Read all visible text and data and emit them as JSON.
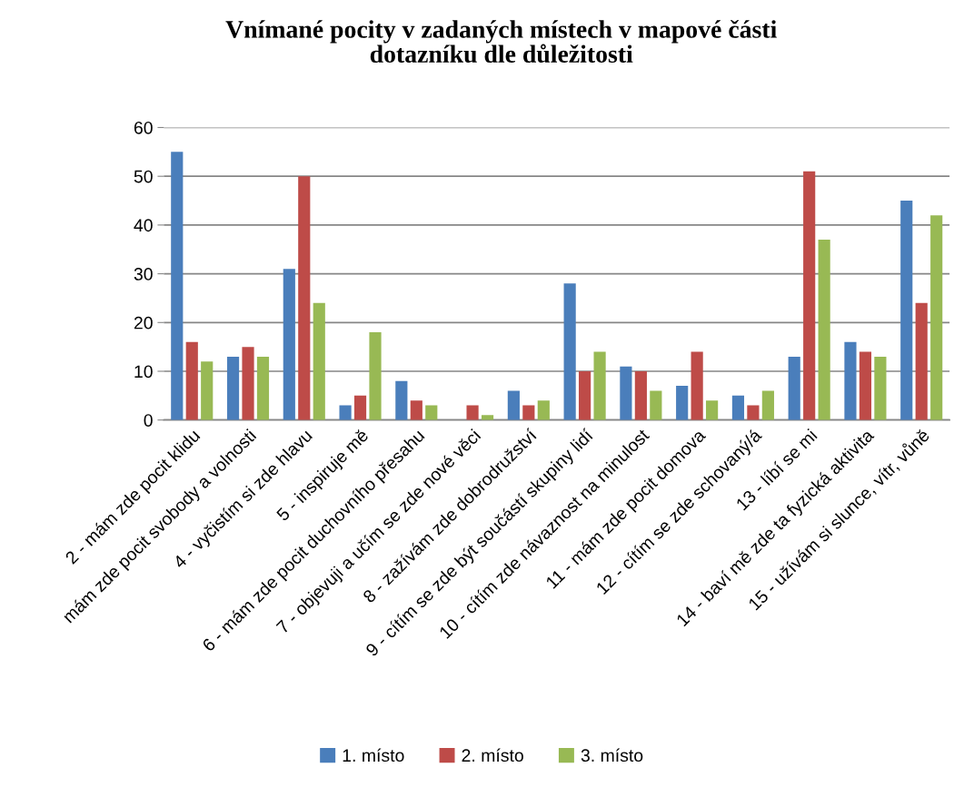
{
  "chart_data": {
    "type": "bar",
    "title": "Vnímané pocity v zadaných místech v mapové části\ndotazníku dle důležitosti",
    "categories": [
      "2 - mám zde pocit klidu",
      "mám zde pocit svobody a volnosti",
      "4 - vyčistím si zde hlavu",
      "5 - inspiruje mě",
      "6 - mám zde pocit duchovního přesahu",
      "7 - objevuji a učím se zde nové věci",
      "8 - zažívám zde dobrodružství",
      "9 - cítím se zde být součástí skupiny lidí",
      "10 - cítím zde návaznost na minulost",
      "11 - mám zde pocit domova",
      "12 - cítím se zde schovaný/á",
      "13 - líbí se mi",
      "14 - baví mě zde ta fyzická aktivita",
      "15 - užívám si slunce, vítr, vůně"
    ],
    "series": [
      {
        "name": "1. místo",
        "color": "#4a7ebb",
        "values": [
          55,
          13,
          31,
          3,
          8,
          0,
          6,
          28,
          11,
          7,
          5,
          13,
          16,
          45
        ]
      },
      {
        "name": "2. místo",
        "color": "#be4b48",
        "values": [
          16,
          15,
          50,
          5,
          4,
          3,
          3,
          10,
          10,
          14,
          3,
          51,
          14,
          24
        ]
      },
      {
        "name": "3. místo",
        "color": "#98b954",
        "values": [
          12,
          13,
          24,
          18,
          3,
          1,
          4,
          14,
          6,
          4,
          6,
          37,
          13,
          42
        ]
      }
    ],
    "ylim": [
      0,
      60
    ],
    "yticks": [
      0,
      10,
      20,
      30,
      40,
      50,
      60
    ],
    "grid": "y",
    "legend": "bottom"
  }
}
